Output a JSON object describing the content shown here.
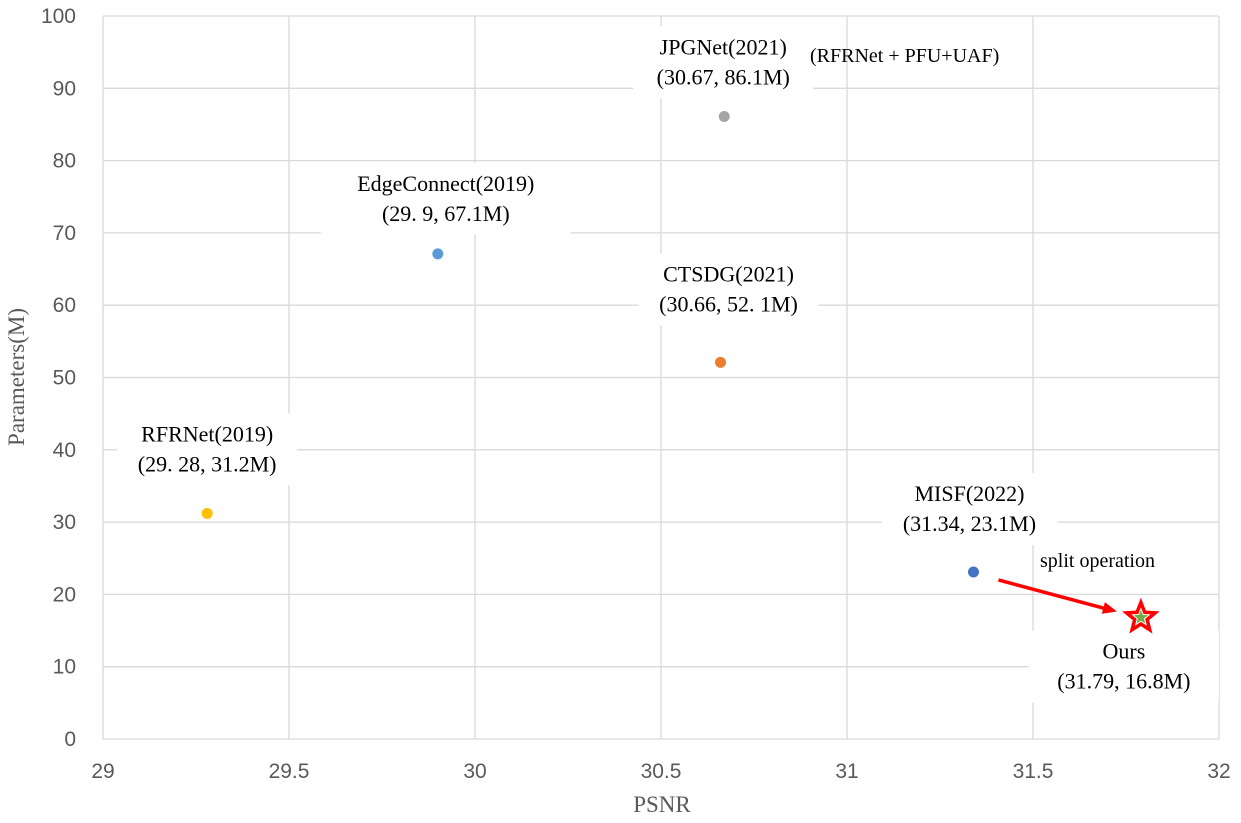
{
  "chart_data": {
    "type": "scatter",
    "xlabel": "PSNR",
    "ylabel": "Parameters(M)",
    "xlim": [
      29,
      32
    ],
    "ylim": [
      0,
      100
    ],
    "xticks": [
      "29",
      "29.5",
      "30",
      "30.5",
      "31",
      "31.5",
      "32"
    ],
    "yticks": [
      "0",
      "10",
      "20",
      "30",
      "40",
      "50",
      "60",
      "70",
      "80",
      "90",
      "100"
    ],
    "grid": true,
    "points": [
      {
        "id": "rfrnet",
        "x": 29.28,
        "y": 31.2,
        "color": "#FFC000",
        "marker": "circle",
        "label_line1": "RFRNet(2019)",
        "label_line2": "(29. 28, 31.2M)"
      },
      {
        "id": "edgeconnect",
        "x": 29.9,
        "y": 67.1,
        "color": "#5B9BD5",
        "marker": "circle",
        "label_line1": "EdgeConnect(2019)",
        "label_line2": "(29. 9, 67.1M)"
      },
      {
        "id": "ctsdg",
        "x": 30.66,
        "y": 52.1,
        "color": "#ED7D31",
        "marker": "circle",
        "label_line1": "CTSDG(2021)",
        "label_line2": "(30.66, 52. 1M)"
      },
      {
        "id": "jpgnet",
        "x": 30.67,
        "y": 86.1,
        "color": "#A5A5A5",
        "marker": "circle",
        "label_line1": "JPGNet(2021)",
        "label_line2": "(30.67, 86.1M)"
      },
      {
        "id": "misf",
        "x": 31.34,
        "y": 23.1,
        "color": "#4472C4",
        "marker": "circle",
        "label_line1": "MISF(2022)",
        "label_line2": "(31.34, 23.1M)"
      },
      {
        "id": "ours",
        "x": 31.79,
        "y": 16.8,
        "color": "#70AD47",
        "marker": "star",
        "label_line1": "Ours",
        "label_line2": "(31.79, 16.8M)"
      }
    ],
    "annotations": {
      "jpgnet_note": "(RFRNet + PFU+UAF)",
      "arrow_label": "split operation",
      "arrow_color": "#FF0000",
      "highlight_color": "#FF0000"
    }
  }
}
